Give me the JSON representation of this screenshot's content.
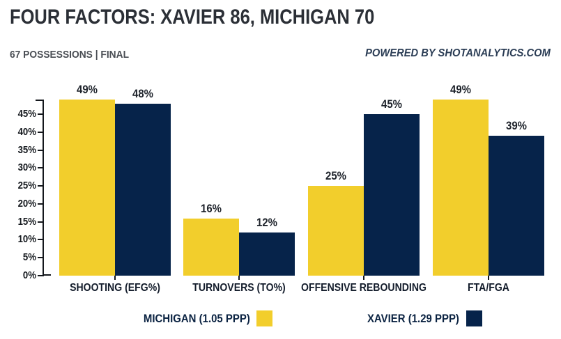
{
  "header": {
    "title": "FOUR FACTORS: XAVIER 86, MICHIGAN 70",
    "subtitle": "67 POSSESSIONS | FINAL",
    "powered_by": "POWERED BY SHOTANALYTICS.COM"
  },
  "colors": {
    "michigan": "#f2ce2c",
    "xavier": "#06234a",
    "title_text": "#2b2f36",
    "subtitle_text": "#4a4e54",
    "powered_by_text": "#2b3d55",
    "axis": "#14171c",
    "value_label_text": "#1e232b",
    "category_label_text": "#131c2b",
    "legend_text": "#0b2342"
  },
  "chart_data": {
    "type": "bar",
    "title": "FOUR FACTORS: XAVIER 86, MICHIGAN 70",
    "subtitle": "67 POSSESSIONS | FINAL",
    "categories": [
      "SHOOTING (EFG%)",
      "TURNOVERS (TO%)",
      "OFFENSIVE REBOUNDING",
      "FTA/FGA"
    ],
    "series": [
      {
        "name": "MICHIGAN (1.05 PPP)",
        "color_key": "michigan",
        "values": [
          49,
          16,
          25,
          49
        ]
      },
      {
        "name": "XAVIER (1.29 PPP)",
        "color_key": "xavier",
        "values": [
          48,
          12,
          45,
          39
        ]
      }
    ],
    "value_suffix": "%",
    "yticks": [
      0,
      5,
      10,
      15,
      20,
      25,
      30,
      35,
      40,
      45
    ],
    "ytick_suffix": "%",
    "ylim": [
      0,
      49
    ],
    "xlabel": "",
    "ylabel": "",
    "grid": false,
    "legend_position": "bottom"
  },
  "legend": {
    "items": [
      {
        "label": "MICHIGAN (1.05 PPP)",
        "color_key": "michigan"
      },
      {
        "label": "XAVIER (1.29 PPP)",
        "color_key": "xavier"
      }
    ]
  }
}
